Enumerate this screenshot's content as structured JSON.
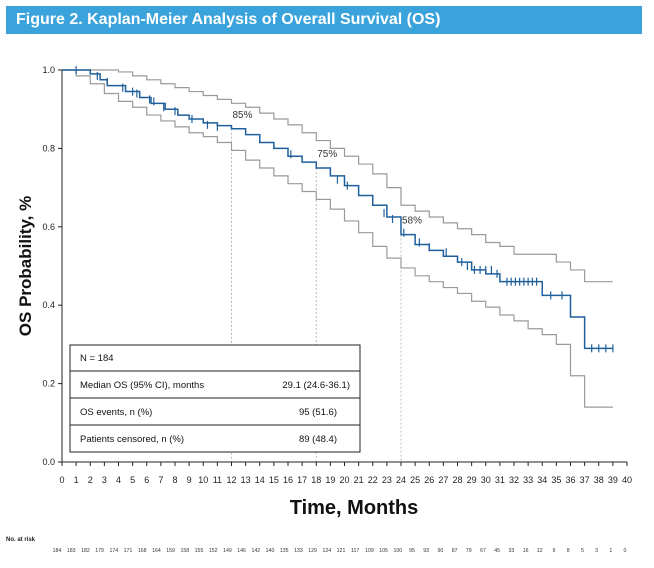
{
  "title": "Figure 2. Kaplan-Meier Analysis of Overall Survival (OS)",
  "chart_data": {
    "type": "line",
    "title": "Figure 2. Kaplan-Meier Analysis of Overall Survival (OS)",
    "xlabel": "Time, Months",
    "ylabel": "OS Probability, %",
    "xlim": [
      0,
      40
    ],
    "ylim": [
      0,
      1
    ],
    "x_ticks": [
      0,
      1,
      2,
      3,
      4,
      5,
      6,
      7,
      8,
      9,
      10,
      11,
      12,
      13,
      14,
      15,
      16,
      17,
      18,
      19,
      20,
      21,
      22,
      23,
      24,
      25,
      26,
      27,
      28,
      29,
      30,
      31,
      32,
      33,
      34,
      35,
      36,
      37,
      38,
      39,
      40
    ],
    "y_ticks": [
      0.0,
      0.2,
      0.4,
      0.6,
      0.8,
      1.0
    ],
    "y_tick_labels": [
      "0.0",
      "0.2",
      "0.4",
      "0.6",
      "0.8",
      "1.0"
    ],
    "grid": false,
    "colors": {
      "estimate": "#1f5f9c",
      "ci": "#9a9a9a",
      "reference": "#bbbbbb"
    },
    "series": [
      {
        "role": "estimate",
        "x": [
          0,
          2,
          2.7,
          3.2,
          4.5,
          5.5,
          6.3,
          7.3,
          8.2,
          9,
          10,
          11,
          12,
          13,
          14,
          15,
          16,
          17,
          18,
          19,
          20,
          21,
          22,
          23,
          24,
          25,
          26,
          27,
          28,
          29,
          30,
          31,
          32,
          33,
          34,
          35,
          36,
          37,
          38,
          39
        ],
        "y": [
          1,
          0.99,
          0.975,
          0.96,
          0.945,
          0.93,
          0.915,
          0.9,
          0.885,
          0.875,
          0.865,
          0.858,
          0.85,
          0.835,
          0.815,
          0.8,
          0.78,
          0.765,
          0.75,
          0.73,
          0.705,
          0.68,
          0.655,
          0.625,
          0.58,
          0.555,
          0.54,
          0.525,
          0.51,
          0.49,
          0.48,
          0.46,
          0.46,
          0.46,
          0.425,
          0.425,
          0.37,
          0.29,
          0.29,
          0.29
        ]
      },
      {
        "role": "ci-upper",
        "x": [
          0,
          3,
          4,
          5,
          6,
          7,
          8,
          9,
          10,
          11,
          12,
          13,
          14,
          15,
          16,
          17,
          18,
          19,
          20,
          21,
          22,
          23,
          24,
          25,
          26,
          27,
          28,
          29,
          30,
          31,
          32,
          33,
          34,
          35,
          36,
          37,
          38,
          39
        ],
        "y": [
          1,
          1,
          0.995,
          0.985,
          0.975,
          0.965,
          0.955,
          0.945,
          0.935,
          0.925,
          0.915,
          0.905,
          0.89,
          0.875,
          0.86,
          0.84,
          0.82,
          0.8,
          0.78,
          0.76,
          0.735,
          0.7,
          0.655,
          0.64,
          0.625,
          0.61,
          0.595,
          0.58,
          0.56,
          0.55,
          0.53,
          0.53,
          0.53,
          0.51,
          0.49,
          0.46,
          0.46,
          0.46
        ]
      },
      {
        "role": "ci-lower",
        "x": [
          0,
          1,
          2,
          3,
          4,
          5,
          6,
          7,
          8,
          9,
          10,
          11,
          12,
          13,
          14,
          15,
          16,
          17,
          18,
          19,
          20,
          21,
          22,
          23,
          24,
          25,
          26,
          27,
          28,
          29,
          30,
          31,
          32,
          33,
          34,
          35,
          36,
          37,
          38,
          39
        ],
        "y": [
          1,
          0.985,
          0.965,
          0.94,
          0.92,
          0.905,
          0.885,
          0.87,
          0.855,
          0.84,
          0.83,
          0.815,
          0.795,
          0.77,
          0.75,
          0.73,
          0.71,
          0.69,
          0.67,
          0.645,
          0.615,
          0.585,
          0.55,
          0.52,
          0.495,
          0.475,
          0.46,
          0.445,
          0.43,
          0.41,
          0.395,
          0.375,
          0.36,
          0.34,
          0.325,
          0.3,
          0.22,
          0.14,
          0.14,
          0.14
        ]
      }
    ],
    "censor_marks": {
      "x": [
        1,
        2.5,
        3.2,
        4.3,
        5,
        5.3,
        6.2,
        6.5,
        7.2,
        8,
        9.2,
        10.3,
        11,
        16.2,
        19.5,
        20.2,
        22.8,
        23.4,
        24.2,
        25.3,
        26,
        27.2,
        28.3,
        28.7,
        29.2,
        29.6,
        30,
        30.4,
        30.8,
        31.5,
        31.8,
        32.1,
        32.4,
        32.7,
        33,
        33.3,
        33.6,
        34.6,
        35.4,
        37.5,
        38,
        38.5,
        39
      ],
      "y": [
        1,
        0.985,
        0.97,
        0.955,
        0.945,
        0.94,
        0.925,
        0.92,
        0.905,
        0.895,
        0.875,
        0.86,
        0.855,
        0.785,
        0.72,
        0.705,
        0.635,
        0.62,
        0.585,
        0.56,
        0.548,
        0.535,
        0.51,
        0.5,
        0.49,
        0.49,
        0.49,
        0.49,
        0.48,
        0.46,
        0.46,
        0.46,
        0.46,
        0.46,
        0.46,
        0.46,
        0.46,
        0.425,
        0.425,
        0.29,
        0.29,
        0.29,
        0.29
      ]
    },
    "reference_lines": [
      {
        "x": 12,
        "y": 0.85,
        "label": "85%"
      },
      {
        "x": 18,
        "y": 0.75,
        "label": "75%"
      },
      {
        "x": 24,
        "y": 0.58,
        "label": "58%"
      }
    ],
    "stats_table": [
      {
        "label": "N = 184",
        "value": ""
      },
      {
        "label": "Median OS (95% CI), months",
        "value": "29.1 (24.6-36.1)"
      },
      {
        "label": "OS events, n (%)",
        "value": "95 (51.6)"
      },
      {
        "label": "Patients censored, n (%)",
        "value": "89 (48.4)"
      }
    ],
    "risk_table": {
      "title": "No. at risk",
      "values": [
        184,
        183,
        182,
        179,
        174,
        171,
        168,
        164,
        159,
        158,
        155,
        152,
        149,
        146,
        142,
        140,
        135,
        133,
        129,
        124,
        121,
        117,
        109,
        105,
        100,
        95,
        93,
        90,
        87,
        79,
        67,
        45,
        33,
        16,
        12,
        9,
        8,
        5,
        3,
        1,
        0
      ]
    }
  }
}
